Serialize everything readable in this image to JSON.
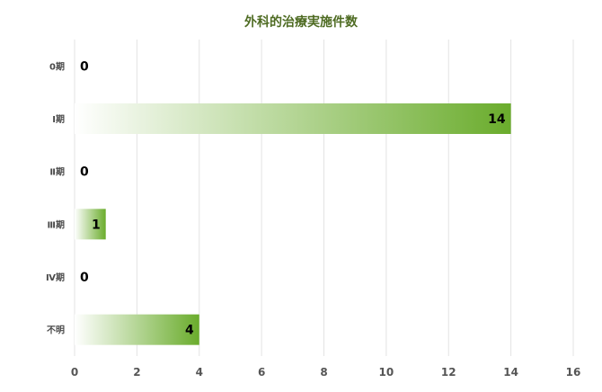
{
  "chart_data": {
    "type": "bar",
    "orientation": "horizontal",
    "title": "外科的治療実施件数",
    "categories": [
      "0期",
      "Ⅰ期",
      "Ⅱ期",
      "Ⅲ期",
      "Ⅳ期",
      "不明"
    ],
    "values": [
      0,
      14,
      0,
      1,
      0,
      4
    ],
    "data_labels": [
      "0",
      "14",
      "0",
      "1",
      "0",
      "4"
    ],
    "xlabel": "",
    "ylabel": "",
    "xlim": [
      0,
      16
    ],
    "x_ticks": [
      "0",
      "2",
      "4",
      "6",
      "8",
      "10",
      "12",
      "14",
      "16"
    ],
    "grid": true,
    "legend": "none",
    "colors": {
      "bar_start": "#ffffff",
      "bar_end": "#6aac2c",
      "title": "#4e6b22",
      "grid": "#e3e3e3"
    }
  }
}
